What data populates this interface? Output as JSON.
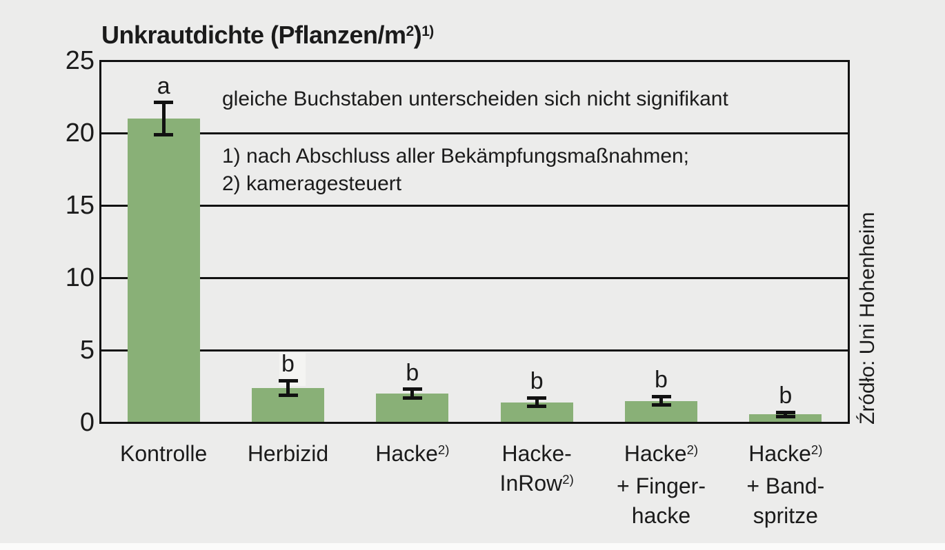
{
  "colors": {
    "background": "#ECECEB",
    "bar_fill": "#89B077",
    "line": "#111111",
    "text": "#1B1B1B",
    "highlight_box": "#F4F4F2",
    "bottom_strip": "#FBFBFA"
  },
  "title": {
    "parts": [
      "Unkrautdichte (Pflanzen/m",
      "2",
      ")",
      "1)"
    ]
  },
  "annotation": "gleiche Buchstaben unterscheiden sich nicht signifikant",
  "footnotes": [
    "1) nach Abschluss aller Bekämpfungsmaßnahmen;",
    "2) kameragesteuert"
  ],
  "source": "Źródło: Uni Hohenheim",
  "chart_data": {
    "type": "bar",
    "title": "Unkrautdichte (Pflanzen/m²)¹⁾",
    "ylabel": "Unkrautdichte (Pflanzen/m²)",
    "xlabel": "",
    "ylim": [
      0,
      25
    ],
    "yticks": [
      0,
      5,
      10,
      15,
      20,
      25
    ],
    "grid": true,
    "legend": "none",
    "bar_color": "#89B077",
    "categories": [
      {
        "label": "Kontrolle",
        "lines": [
          {
            "text": "Kontrolle"
          }
        ]
      },
      {
        "label": "Herbizid",
        "lines": [
          {
            "text": "Herbizid"
          }
        ]
      },
      {
        "label": "Hacke 2)",
        "lines": [
          {
            "text": "Hacke",
            "sup": "2)"
          }
        ]
      },
      {
        "label": "Hacke-InRow 2)",
        "lines": [
          {
            "text": "Hacke-"
          },
          {
            "text": "InRow",
            "sup": "2)"
          }
        ]
      },
      {
        "label": "Hacke 2) + Fingerhacke",
        "lines": [
          {
            "text": "Hacke",
            "sup": "2)"
          },
          {
            "text": "+ Finger-"
          },
          {
            "text": "hacke"
          }
        ]
      },
      {
        "label": "Hacke 2) + Bandspritze",
        "lines": [
          {
            "text": "Hacke",
            "sup": "2)"
          },
          {
            "text": "+ Band-"
          },
          {
            "text": "spritze"
          }
        ]
      }
    ],
    "values": [
      21.0,
      2.4,
      2.0,
      1.4,
      1.5,
      0.55
    ],
    "errors": [
      1.1,
      0.5,
      0.3,
      0.3,
      0.3,
      0.15
    ],
    "significance_letters": [
      "a",
      "b",
      "b",
      "b",
      "b",
      "b"
    ]
  }
}
